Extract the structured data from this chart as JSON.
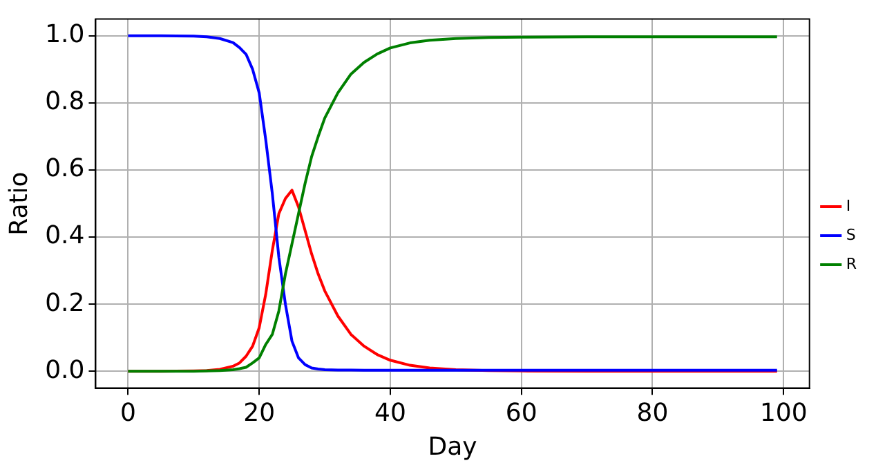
{
  "chart_data": {
    "type": "line",
    "xlabel": "Day",
    "ylabel": "Ratio",
    "x": [
      0,
      5,
      10,
      12,
      14,
      16,
      17,
      18,
      19,
      20,
      21,
      22,
      23,
      24,
      25,
      26,
      27,
      28,
      29,
      30,
      32,
      34,
      36,
      38,
      40,
      43,
      46,
      50,
      55,
      60,
      70,
      80,
      90,
      99
    ],
    "series": [
      {
        "name": "I",
        "color": "#ff0000",
        "values": [
          0,
          0,
          0.001,
          0.002,
          0.006,
          0.015,
          0.025,
          0.045,
          0.075,
          0.13,
          0.23,
          0.36,
          0.47,
          0.515,
          0.54,
          0.49,
          0.42,
          0.35,
          0.29,
          0.24,
          0.165,
          0.11,
          0.075,
          0.05,
          0.033,
          0.018,
          0.01,
          0.005,
          0.002,
          0.001,
          0,
          0,
          0,
          0
        ]
      },
      {
        "name": "S",
        "color": "#0000ff",
        "values": [
          1,
          1,
          0.999,
          0.997,
          0.992,
          0.98,
          0.965,
          0.945,
          0.9,
          0.83,
          0.69,
          0.53,
          0.34,
          0.2,
          0.09,
          0.04,
          0.02,
          0.01,
          0.007,
          0.005,
          0.004,
          0.004,
          0.003,
          0.003,
          0.003,
          0.003,
          0.003,
          0.003,
          0.003,
          0.003,
          0.003,
          0.003,
          0.003,
          0.003
        ]
      },
      {
        "name": "R",
        "color": "#008000",
        "values": [
          0,
          0,
          0,
          0.001,
          0.002,
          0.005,
          0.008,
          0.012,
          0.025,
          0.04,
          0.08,
          0.11,
          0.18,
          0.29,
          0.38,
          0.47,
          0.56,
          0.64,
          0.7,
          0.755,
          0.83,
          0.886,
          0.921,
          0.946,
          0.964,
          0.979,
          0.987,
          0.992,
          0.995,
          0.996,
          0.997,
          0.997,
          0.997,
          0.997
        ]
      }
    ],
    "xlim": [
      -4.95,
      103.95
    ],
    "xticks": [
      0,
      20,
      40,
      60,
      80,
      100
    ],
    "ylim": [
      -0.05,
      1.05
    ],
    "yticks": [
      {
        "value": 0,
        "label": "0.0"
      },
      {
        "value": 0.2,
        "label": "0.2"
      },
      {
        "value": 0.4,
        "label": "0.4"
      },
      {
        "value": 0.6,
        "label": "0.6"
      },
      {
        "value": 0.8,
        "label": "0.8"
      },
      {
        "value": 1,
        "label": "1.0"
      }
    ],
    "grid": true,
    "legend": "right",
    "marker": "none",
    "line_style": "solid"
  }
}
